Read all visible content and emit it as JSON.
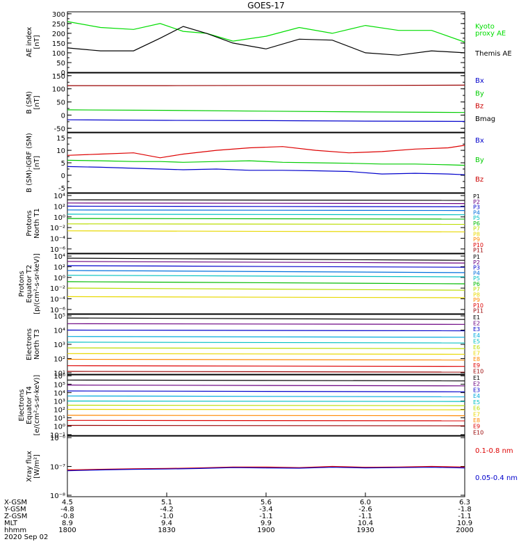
{
  "title": "GOES-17",
  "panels": [
    {
      "id": "ae",
      "ylabel": [
        "AE index",
        "[nT]"
      ],
      "ticks": [
        {
          "v": 300,
          "label": "300"
        },
        {
          "v": 250,
          "label": "250"
        },
        {
          "v": 200,
          "label": "200"
        },
        {
          "v": 150,
          "label": "150"
        },
        {
          "v": 100,
          "label": "100"
        },
        {
          "v": 50,
          "label": "50"
        },
        {
          "v": 0,
          "label": "0"
        }
      ],
      "ylim": [
        0,
        310
      ],
      "log": false,
      "legend": [
        {
          "text": "Kyoto",
          "color": "#00dd00"
        },
        {
          "text": "proxy AE",
          "color": "#00dd00"
        },
        {
          "text": "Themis AE",
          "color": "#000000"
        }
      ]
    },
    {
      "id": "b_sm",
      "ylabel": [
        "B (SM)",
        "[nT]"
      ],
      "ticks": [
        {
          "v": 150,
          "label": "150"
        },
        {
          "v": 100,
          "label": "100"
        },
        {
          "v": 50,
          "label": "50"
        },
        {
          "v": 0,
          "label": "0"
        },
        {
          "v": -50,
          "label": "-50"
        }
      ],
      "ylim": [
        -65,
        160
      ],
      "log": false,
      "legend": [
        {
          "text": "Bx",
          "color": "#0000cc"
        },
        {
          "text": "By",
          "color": "#00cc00"
        },
        {
          "text": "Bz",
          "color": "#cc0000"
        },
        {
          "text": "Bmag",
          "color": "#000000"
        }
      ]
    },
    {
      "id": "b_igrf",
      "ylabel": [
        "B (SM)-IGRF (SM)",
        "[nT]"
      ],
      "ticks": [
        {
          "v": 15,
          "label": "15"
        },
        {
          "v": 10,
          "label": "10"
        },
        {
          "v": 5,
          "label": "5"
        },
        {
          "v": 0,
          "label": "0"
        },
        {
          "v": -5,
          "label": "-5"
        }
      ],
      "ylim": [
        -7,
        17
      ],
      "log": false,
      "legend": [
        {
          "text": "Bx",
          "color": "#0000cc"
        },
        {
          "text": "By",
          "color": "#00cc00"
        },
        {
          "text": "Bz",
          "color": "#cc0000"
        }
      ]
    },
    {
      "id": "protons_t1",
      "ylabel": [
        "Protons",
        "North T1"
      ],
      "ticks": [
        {
          "v": 4,
          "label": "10⁴"
        },
        {
          "v": 2,
          "label": "10²"
        },
        {
          "v": 0,
          "label": "10⁰"
        },
        {
          "v": -2,
          "label": "10⁻²"
        },
        {
          "v": -4,
          "label": "10⁻⁴"
        },
        {
          "v": -6,
          "label": "10⁻⁶"
        }
      ],
      "ylim": [
        -6.8,
        4.4
      ],
      "log": true,
      "legend": [
        {
          "text": "P1",
          "color": "#000000"
        },
        {
          "text": "P2",
          "color": "#6a0080"
        },
        {
          "text": "P3",
          "color": "#0000cc"
        },
        {
          "text": "P4",
          "color": "#0070dd"
        },
        {
          "text": "P5",
          "color": "#00c0c0"
        },
        {
          "text": "P6",
          "color": "#00bb00"
        },
        {
          "text": "P7",
          "color": "#bbdd00"
        },
        {
          "text": "P8",
          "color": "#e8d800"
        },
        {
          "text": "P9",
          "color": "#ff8800"
        },
        {
          "text": "P10",
          "color": "#dd0000"
        },
        {
          "text": "P11",
          "color": "#990000"
        }
      ]
    },
    {
      "id": "protons_t2",
      "ylabel": [
        "Protons",
        "Equator T2",
        "[p/(cm²-s-sr-keV)]"
      ],
      "ticks": [
        {
          "v": 4,
          "label": "10⁴"
        },
        {
          "v": 2,
          "label": "10²"
        },
        {
          "v": 0,
          "label": "10⁰"
        },
        {
          "v": -2,
          "label": "10⁻²"
        },
        {
          "v": -4,
          "label": "10⁻⁴"
        },
        {
          "v": -6,
          "label": "10⁻⁶"
        }
      ],
      "ylim": [
        -6.8,
        4.4
      ],
      "log": true,
      "legend": [
        {
          "text": "P1",
          "color": "#000000"
        },
        {
          "text": "P2",
          "color": "#6a0080"
        },
        {
          "text": "P3",
          "color": "#0000cc"
        },
        {
          "text": "P4",
          "color": "#0070dd"
        },
        {
          "text": "P5",
          "color": "#00c0c0"
        },
        {
          "text": "P6",
          "color": "#00bb00"
        },
        {
          "text": "P7",
          "color": "#bbdd00"
        },
        {
          "text": "P8",
          "color": "#e8d800"
        },
        {
          "text": "P9",
          "color": "#ff8800"
        },
        {
          "text": "P10",
          "color": "#dd0000"
        },
        {
          "text": "P11",
          "color": "#990000"
        }
      ]
    },
    {
      "id": "electrons_t3",
      "ylabel": [
        "Electrons",
        "North T3"
      ],
      "ticks": [
        {
          "v": 5,
          "label": "10⁵"
        },
        {
          "v": 4,
          "label": "10⁴"
        },
        {
          "v": 3,
          "label": "10³"
        },
        {
          "v": 2,
          "label": "10²"
        },
        {
          "v": 1,
          "label": "10¹"
        }
      ],
      "ylim": [
        0.9,
        5.1
      ],
      "log": true,
      "legend": [
        {
          "text": "E1",
          "color": "#000000"
        },
        {
          "text": "E2",
          "color": "#6a0080"
        },
        {
          "text": "E3",
          "color": "#0000cc"
        },
        {
          "text": "E4",
          "color": "#00aadd"
        },
        {
          "text": "E5",
          "color": "#00c0c0"
        },
        {
          "text": "E6",
          "color": "#bbdd00"
        },
        {
          "text": "E7",
          "color": "#e8d800"
        },
        {
          "text": "E8",
          "color": "#ff8800"
        },
        {
          "text": "E9",
          "color": "#dd0000"
        },
        {
          "text": "E10",
          "color": "#990000"
        }
      ]
    },
    {
      "id": "electrons_t4",
      "ylabel": [
        "Electrons",
        "Equator T4",
        "[e/(cm²-s-sr-keV)]"
      ],
      "ticks": [
        {
          "v": 6,
          "label": "10⁶"
        },
        {
          "v": 5,
          "label": "10⁵"
        },
        {
          "v": 4,
          "label": "10⁴"
        },
        {
          "v": 3,
          "label": "10³"
        },
        {
          "v": 2,
          "label": "10²"
        },
        {
          "v": 1,
          "label": "10¹"
        },
        {
          "v": 0,
          "label": "10⁰"
        },
        {
          "v": -1,
          "label": "10⁻¹"
        }
      ],
      "ylim": [
        -1.1,
        6.1
      ],
      "log": true,
      "legend": [
        {
          "text": "E1",
          "color": "#000000"
        },
        {
          "text": "E2",
          "color": "#6a0080"
        },
        {
          "text": "E3",
          "color": "#0000cc"
        },
        {
          "text": "E4",
          "color": "#00aadd"
        },
        {
          "text": "E5",
          "color": "#00c0c0"
        },
        {
          "text": "E6",
          "color": "#bbdd00"
        },
        {
          "text": "E7",
          "color": "#e8d800"
        },
        {
          "text": "E8",
          "color": "#ff8800"
        },
        {
          "text": "E9",
          "color": "#dd0000"
        },
        {
          "text": "E10",
          "color": "#990000"
        }
      ]
    },
    {
      "id": "xray",
      "ylabel": [
        "Xray flux",
        "[W/m²]"
      ],
      "ticks": [
        {
          "v": -6,
          "label": "10⁻⁶"
        },
        {
          "v": -7,
          "label": "10⁻⁷"
        },
        {
          "v": -8,
          "label": "10⁻⁸"
        }
      ],
      "ylim": [
        -8.05,
        -5.95
      ],
      "log": true,
      "legend": [
        {
          "text": "0.1-0.8 nm",
          "color": "#dd0000"
        },
        {
          "text": "0.05-0.4 nm",
          "color": "#0000cc"
        }
      ]
    }
  ],
  "xaxis": {
    "row_labels": [
      "X-GSM",
      "Y-GSM",
      "Z-GSM",
      "MLT",
      "hhmm",
      "2020 Sep 02"
    ],
    "ticks": [
      {
        "t": 0,
        "values": [
          "4.5",
          "-4.8",
          "-0.8",
          "8.9",
          "1800"
        ]
      },
      {
        "t": 30,
        "values": [
          "5.1",
          "-4.2",
          "-1.0",
          "9.4",
          "1830"
        ]
      },
      {
        "t": 60,
        "values": [
          "5.6",
          "-3.4",
          "-1.1",
          "9.9",
          "1900"
        ]
      },
      {
        "t": 90,
        "values": [
          "6.0",
          "-2.6",
          "-1.1",
          "10.4",
          "1930"
        ]
      },
      {
        "t": 120,
        "values": [
          "6.3",
          "-1.8",
          "-1.1",
          "10.9",
          "2000"
        ]
      }
    ]
  },
  "chart_data": [
    {
      "type": "line",
      "title": "GOES-17",
      "panel": "ae",
      "xlabel": "hhmm",
      "x": [
        0,
        10,
        20,
        28,
        35,
        42,
        50,
        60,
        70,
        80,
        90,
        100,
        110,
        120
      ],
      "series": [
        {
          "name": "Kyoto proxy AE",
          "color": "#00dd00",
          "values": [
            260,
            230,
            220,
            250,
            210,
            200,
            160,
            185,
            230,
            200,
            240,
            215,
            215,
            155
          ]
        },
        {
          "name": "Themis AE",
          "color": "#000000",
          "values": [
            125,
            110,
            110,
            175,
            235,
            200,
            150,
            120,
            170,
            165,
            100,
            88,
            110,
            100
          ]
        }
      ]
    },
    {
      "type": "line",
      "panel": "b_sm",
      "x": [
        0,
        30,
        60,
        90,
        120
      ],
      "series": [
        {
          "name": "Bz",
          "color": "#990000",
          "values": [
            112,
            112,
            113,
            113,
            114
          ]
        },
        {
          "name": "By",
          "color": "#00cc00",
          "values": [
            20,
            18,
            15,
            12,
            10
          ]
        },
        {
          "name": "Bx",
          "color": "#0000cc",
          "values": [
            -18,
            -20,
            -21,
            -23,
            -24
          ]
        }
      ]
    },
    {
      "type": "line",
      "panel": "b_igrf",
      "x": [
        0,
        10,
        20,
        28,
        35,
        45,
        55,
        65,
        75,
        85,
        95,
        105,
        115,
        120
      ],
      "series": [
        {
          "name": "Bz",
          "color": "#dd0000",
          "values": [
            8,
            8.5,
            9,
            7,
            8.5,
            10,
            11,
            11.5,
            10,
            9,
            9.5,
            10.5,
            11,
            12
          ]
        },
        {
          "name": "By",
          "color": "#00cc00",
          "values": [
            6,
            5.8,
            5.5,
            5.5,
            5.2,
            5.5,
            5.8,
            5.2,
            5,
            4.8,
            4.5,
            4.5,
            4.2,
            4
          ]
        },
        {
          "name": "Bx",
          "color": "#0000cc",
          "values": [
            3.5,
            3.2,
            2.8,
            2.5,
            2.2,
            2.5,
            2,
            2,
            1.8,
            1.5,
            0.5,
            0.8,
            0.5,
            0.2
          ]
        }
      ]
    },
    {
      "type": "line",
      "panel": "protons_t1",
      "x": [
        0,
        120
      ],
      "series": [
        {
          "name": "P1",
          "color": "#000000",
          "values": [
            3.2,
            3.1
          ]
        },
        {
          "name": "P2",
          "color": "#6a0080",
          "values": [
            2.6,
            2.5
          ]
        },
        {
          "name": "P3",
          "color": "#0000cc",
          "values": [
            2.0,
            1.9
          ]
        },
        {
          "name": "P4",
          "color": "#0070dd",
          "values": [
            1.3,
            1.2
          ]
        },
        {
          "name": "P5",
          "color": "#00c0c0",
          "values": [
            0.5,
            0.4
          ]
        },
        {
          "name": "P6",
          "color": "#00bb00",
          "values": [
            -0.3,
            -0.4
          ]
        },
        {
          "name": "P7",
          "color": "#bbdd00",
          "values": [
            -1.3,
            -1.4
          ]
        },
        {
          "name": "P8",
          "color": "#e8d800",
          "values": [
            -2.6,
            -2.8
          ]
        }
      ]
    },
    {
      "type": "line",
      "panel": "protons_t2",
      "x": [
        0,
        120
      ],
      "series": [
        {
          "name": "P1",
          "color": "#000000",
          "values": [
            3.6,
            3.2
          ]
        },
        {
          "name": "P2",
          "color": "#6a0080",
          "values": [
            3.0,
            2.7
          ]
        },
        {
          "name": "P3",
          "color": "#0000cc",
          "values": [
            2.2,
            1.9
          ]
        },
        {
          "name": "P4",
          "color": "#0070dd",
          "values": [
            1.3,
            0.9
          ]
        },
        {
          "name": "P5",
          "color": "#00c0c0",
          "values": [
            0.4,
            0.1
          ]
        },
        {
          "name": "P6",
          "color": "#00bb00",
          "values": [
            -0.8,
            -1.2
          ]
        },
        {
          "name": "P7",
          "color": "#bbdd00",
          "values": [
            -2.0,
            -2.4
          ]
        },
        {
          "name": "P8",
          "color": "#e8d800",
          "values": [
            -3.6,
            -3.8
          ]
        }
      ]
    },
    {
      "type": "line",
      "panel": "electrons_t3",
      "x": [
        0,
        120
      ],
      "series": [
        {
          "name": "E1",
          "color": "#000000",
          "values": [
            4.85,
            4.75
          ]
        },
        {
          "name": "E2",
          "color": "#6a0080",
          "values": [
            4.45,
            4.4
          ]
        },
        {
          "name": "E3",
          "color": "#0000cc",
          "values": [
            4.0,
            3.95
          ]
        },
        {
          "name": "E4",
          "color": "#00aadd",
          "values": [
            3.55,
            3.5
          ]
        },
        {
          "name": "E5",
          "color": "#00c0c0",
          "values": [
            3.15,
            3.1
          ]
        },
        {
          "name": "E6",
          "color": "#bbdd00",
          "values": [
            2.75,
            2.7
          ]
        },
        {
          "name": "E7",
          "color": "#e8d800",
          "values": [
            2.35,
            2.3
          ]
        },
        {
          "name": "E8",
          "color": "#ff8800",
          "values": [
            1.95,
            1.9
          ]
        },
        {
          "name": "E9",
          "color": "#dd0000",
          "values": [
            1.5,
            1.45
          ]
        },
        {
          "name": "E10",
          "color": "#990000",
          "values": [
            1.1,
            1.05
          ]
        }
      ]
    },
    {
      "type": "line",
      "panel": "electrons_t4",
      "x": [
        0,
        120
      ],
      "series": [
        {
          "name": "E1",
          "color": "#000000",
          "values": [
            5.5,
            5.4
          ]
        },
        {
          "name": "E2",
          "color": "#6a0080",
          "values": [
            4.9,
            4.8
          ]
        },
        {
          "name": "E3",
          "color": "#0000cc",
          "values": [
            4.2,
            4.1
          ]
        },
        {
          "name": "E4",
          "color": "#00aadd",
          "values": [
            3.6,
            3.5
          ]
        },
        {
          "name": "E5",
          "color": "#00c0c0",
          "values": [
            3.0,
            2.95
          ]
        },
        {
          "name": "E6",
          "color": "#bbdd00",
          "values": [
            2.5,
            2.45
          ]
        },
        {
          "name": "E7",
          "color": "#e8d800",
          "values": [
            2.0,
            1.95
          ]
        },
        {
          "name": "E8",
          "color": "#ff8800",
          "values": [
            1.3,
            1.25
          ]
        },
        {
          "name": "E9",
          "color": "#dd0000",
          "values": [
            0.7,
            0.65
          ]
        },
        {
          "name": "E10",
          "color": "#990000",
          "values": [
            0.1,
            0.05
          ]
        }
      ]
    },
    {
      "type": "line",
      "panel": "xray",
      "x": [
        0,
        10,
        20,
        30,
        40,
        50,
        60,
        70,
        80,
        90,
        100,
        110,
        120
      ],
      "series": [
        {
          "name": "0.1-0.8 nm",
          "color": "#dd0000",
          "values": [
            -7.12,
            -7.1,
            -7.08,
            -7.07,
            -7.05,
            -7.02,
            -7.02,
            -7.04,
            -7.0,
            -7.03,
            -7.02,
            -7.0,
            -7.02
          ]
        },
        {
          "name": "0.05-0.4 nm",
          "color": "#0000cc",
          "values": [
            -7.15,
            -7.12,
            -7.1,
            -7.09,
            -7.07,
            -7.04,
            -7.05,
            -7.06,
            -7.03,
            -7.05,
            -7.04,
            -7.03,
            -7.05
          ]
        }
      ]
    }
  ]
}
